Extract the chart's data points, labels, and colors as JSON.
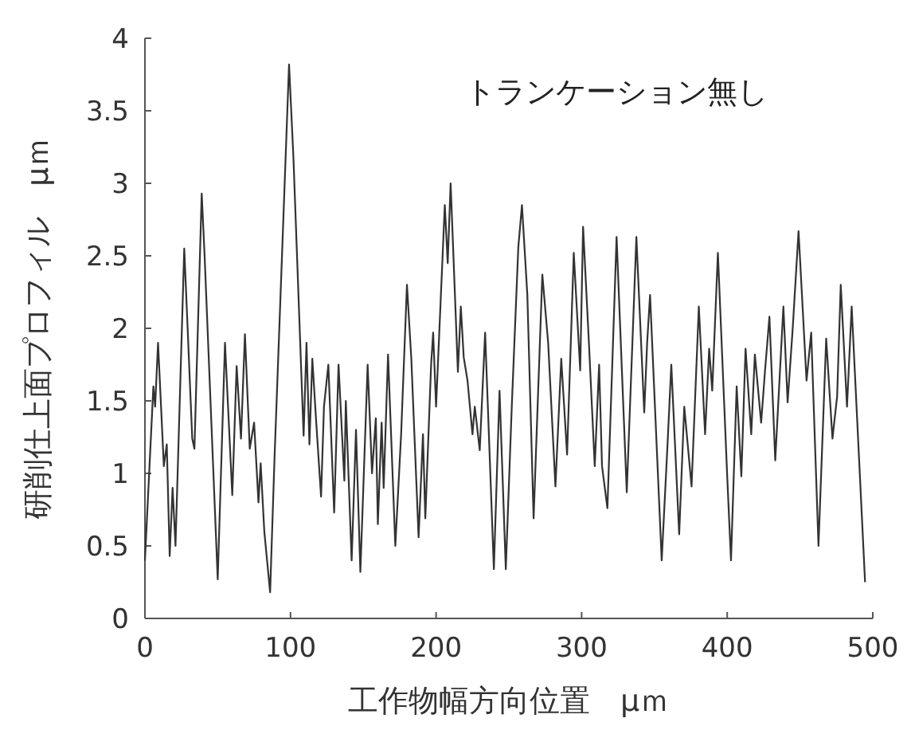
{
  "chart_data": {
    "type": "line",
    "xlabel": "工作物幅方向位置　μｍ",
    "ylabel": "研削仕上面プロフィル　μｍ",
    "annotations": [
      "トランケーション無し"
    ],
    "xlim": [
      0,
      500
    ],
    "ylim": [
      0,
      4
    ],
    "xticks": [
      0,
      100,
      200,
      300,
      400,
      500
    ],
    "yticks": [
      0,
      {
        "value": 0.5,
        "label": "0.5"
      },
      1,
      {
        "value": 1.5,
        "label": "1.5"
      },
      2,
      {
        "value": 2.5,
        "label": "2.5"
      },
      3,
      {
        "value": 3.5,
        "label": "3.5"
      },
      4
    ],
    "marker": "none",
    "line_style": "solid",
    "grid": false,
    "series": [
      {
        "color": "#333333",
        "x": [
          0,
          5.8,
          7,
          9,
          13,
          15,
          17,
          19,
          21,
          27,
          29,
          32.5,
          34,
          39,
          41,
          50,
          55,
          60,
          63,
          66,
          68.7,
          72,
          75,
          78,
          79.5,
          82,
          86,
          89,
          99,
          102,
          109,
          111,
          113,
          115,
          117.5,
          121,
          123,
          126,
          130,
          133,
          137,
          138,
          142,
          145,
          148,
          153,
          156,
          158.6,
          160,
          162.6,
          164,
          167,
          172,
          176,
          180,
          183,
          188,
          191,
          192.6,
          196.6,
          198,
          200,
          206,
          208,
          210,
          215,
          217,
          219,
          221.6,
          225,
          226.6,
          230,
          233.7,
          239.7,
          243.6,
          247.9,
          252,
          256.5,
          259,
          262.7,
          267,
          273,
          277,
          282,
          286,
          290,
          294.6,
          299,
          301,
          305,
          309,
          312,
          314,
          317.7,
          324,
          331,
          337.6,
          343,
          345,
          347,
          355,
          359,
          361.6,
          367,
          370.5,
          375.5,
          380.5,
          384.8,
          387.6,
          389.7,
          393.6,
          400,
          402.6,
          406.5,
          409.7,
          412.6,
          416.5,
          419,
          423.3,
          426,
          429,
          433,
          438.6,
          441.5,
          445,
          449,
          454.5,
          457.7,
          462.7,
          468,
          472.3,
          475.5,
          478,
          482.3,
          485.5,
          494.7
        ],
        "values": [
          0.4,
          1.6,
          1.46,
          1.9,
          1.05,
          1.2,
          0.43,
          0.9,
          0.5,
          2.55,
          2.08,
          1.24,
          1.17,
          2.93,
          2.5,
          0.27,
          1.9,
          0.85,
          1.74,
          1.24,
          1.96,
          1.17,
          1.35,
          0.8,
          1.07,
          0.6,
          0.18,
          1.1,
          3.82,
          3.18,
          1.26,
          1.9,
          1.2,
          1.79,
          1.38,
          0.84,
          1.46,
          1.75,
          0.73,
          1.75,
          0.95,
          1.5,
          0.4,
          1.3,
          0.32,
          1.75,
          1.0,
          1.38,
          0.65,
          1.35,
          0.9,
          1.82,
          0.5,
          1.27,
          2.3,
          1.79,
          0.56,
          1.27,
          0.69,
          1.75,
          1.97,
          1.46,
          2.85,
          2.45,
          3.0,
          1.7,
          2.15,
          1.8,
          1.64,
          1.27,
          1.46,
          1.16,
          1.97,
          0.34,
          1.57,
          0.34,
          1.46,
          2.56,
          2.85,
          2.23,
          0.69,
          2.37,
          1.9,
          0.91,
          1.79,
          1.13,
          2.52,
          1.71,
          2.7,
          1.9,
          1.05,
          1.75,
          1.05,
          0.76,
          2.63,
          0.87,
          2.63,
          1.42,
          1.9,
          2.23,
          0.4,
          1.2,
          1.75,
          0.58,
          1.46,
          0.91,
          2.15,
          1.27,
          1.86,
          1.57,
          2.52,
          0.98,
          0.4,
          1.6,
          0.98,
          1.86,
          1.27,
          1.82,
          1.35,
          1.71,
          2.08,
          1.09,
          2.15,
          1.49,
          2.0,
          2.67,
          1.64,
          1.97,
          0.5,
          1.93,
          1.24,
          1.53,
          2.3,
          1.46,
          2.15,
          0.25
        ]
      }
    ]
  }
}
